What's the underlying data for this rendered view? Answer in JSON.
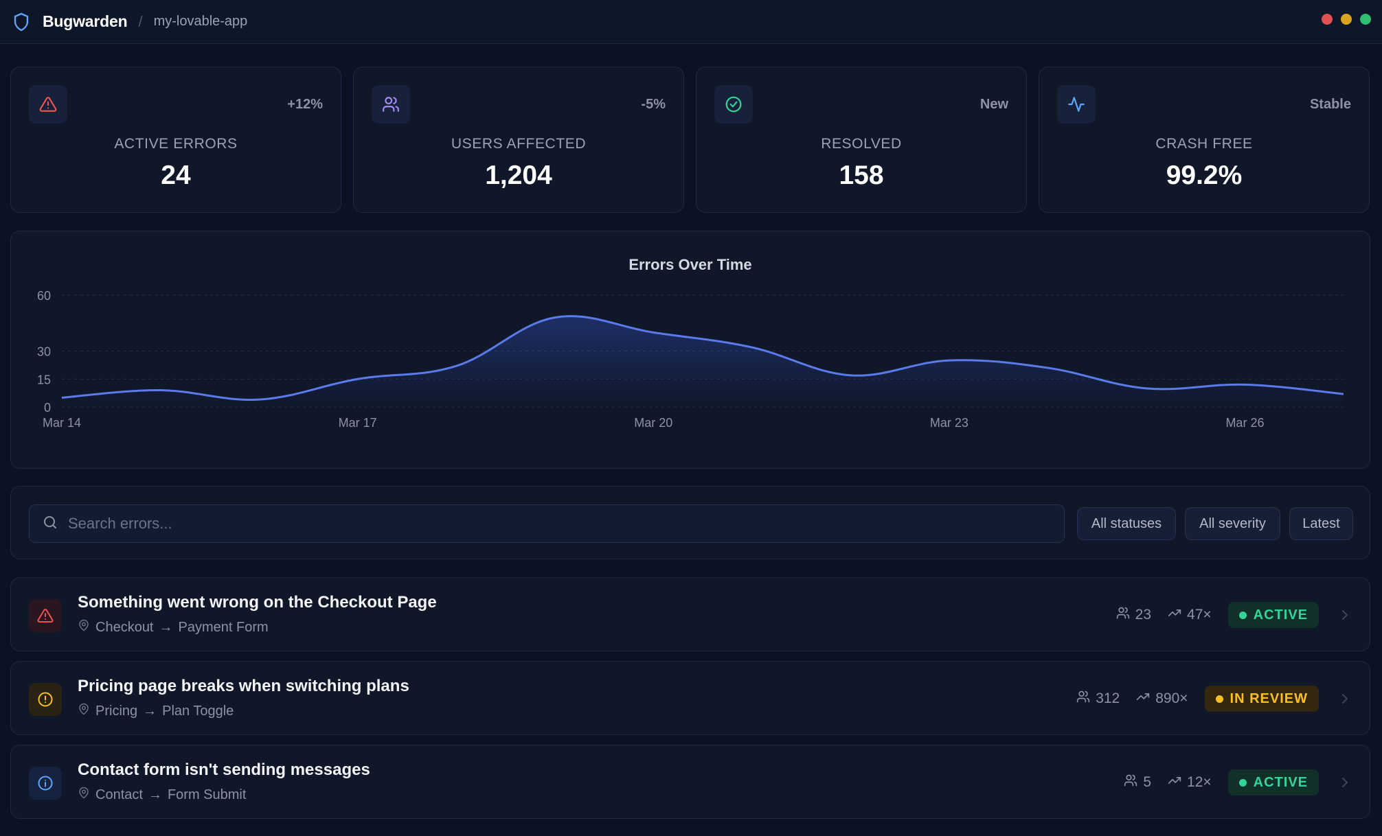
{
  "app": {
    "brand": "Bugwarden",
    "separator": "/",
    "project": "my-lovable-app",
    "window_dots": [
      "#e05252",
      "#d9a520",
      "#2fbf71"
    ]
  },
  "stats": [
    {
      "icon": "alert-triangle-icon",
      "delta": "+12%",
      "label": "ACTIVE ERRORS",
      "value": "24",
      "color": "#f05252"
    },
    {
      "icon": "users-icon",
      "delta": "-5%",
      "label": "USERS AFFECTED",
      "value": "1,204",
      "color": "#a78bfa"
    },
    {
      "icon": "check-circle-icon",
      "delta": "New",
      "label": "RESOLVED",
      "value": "158",
      "color": "#34d399"
    },
    {
      "icon": "activity-icon",
      "delta": "Stable",
      "label": "CRASH FREE",
      "value": "99.2%",
      "color": "#60a5fa"
    }
  ],
  "chart_data": {
    "type": "area",
    "title": "Errors Over Time",
    "x": [
      "Mar 14",
      "Mar 15",
      "Mar 16",
      "Mar 17",
      "Mar 18",
      "Mar 19",
      "Mar 20",
      "Mar 21",
      "Mar 22",
      "Mar 23",
      "Mar 24",
      "Mar 25",
      "Mar 26",
      "Mar 27"
    ],
    "xticks": [
      "Mar 14",
      "Mar 17",
      "Mar 20",
      "Mar 23",
      "Mar 26"
    ],
    "series": [
      {
        "values": [
          5,
          9,
          4,
          15,
          22,
          48,
          40,
          32,
          17,
          25,
          21,
          10,
          12,
          7
        ],
        "color": "#5b7bea"
      }
    ],
    "yticks": [
      0,
      15,
      30,
      60
    ],
    "ylim": [
      0,
      60
    ],
    "grid": true
  },
  "filters": {
    "search_placeholder": "Search errors...",
    "status": "All statuses",
    "severity": "All severity",
    "sort": "Latest"
  },
  "errors": [
    {
      "icon": "alert-triangle-icon",
      "title": "Something went wrong on the Checkout Page",
      "page": "Checkout",
      "component": "Payment Form",
      "users": "23",
      "events": "47×",
      "status": "ACTIVE",
      "severity_color": "#f05252",
      "status_color": "#34d399"
    },
    {
      "icon": "alert-circle-icon",
      "title": "Pricing page breaks when switching plans",
      "page": "Pricing",
      "component": "Plan Toggle",
      "users": "312",
      "events": "890×",
      "status": "IN REVIEW",
      "severity_color": "#fbbf24",
      "status_color": "#fbbf24"
    },
    {
      "icon": "info-icon",
      "title": "Contact form isn't sending messages",
      "page": "Contact",
      "component": "Form Submit",
      "users": "5",
      "events": "12×",
      "status": "ACTIVE",
      "severity_color": "#60a5fa",
      "status_color": "#34d399"
    }
  ],
  "arrow": "→"
}
